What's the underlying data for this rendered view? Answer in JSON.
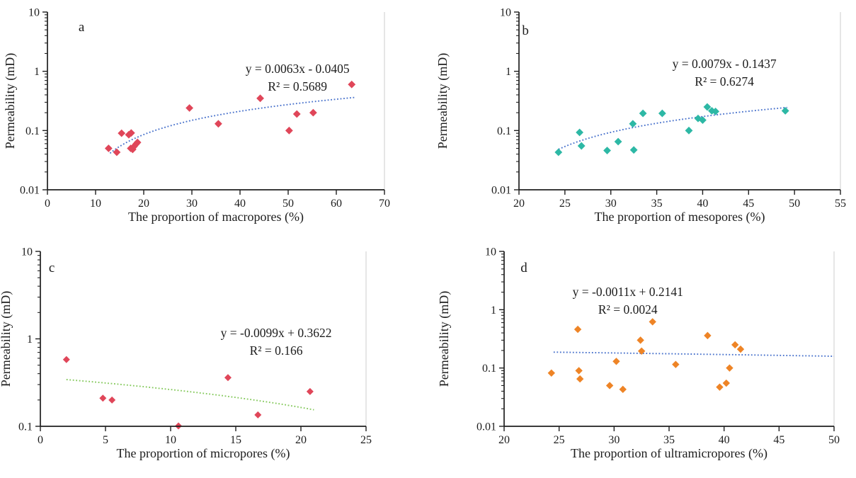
{
  "figure": {
    "background": "#ffffff",
    "axis_color": "#1f1f1f",
    "frame_color": "#cccccc",
    "y_axis_title": "Permeability (mD)"
  },
  "chart_data": [
    {
      "id": "a",
      "type": "scatter",
      "panel_label": "a",
      "x_axis_title": "The proportion of macropores (%)",
      "y_axis_title": "Permeability (mD)",
      "x_range": [
        0,
        70
      ],
      "x_tick_step": 10,
      "x_tick_labels": [
        "0",
        "10",
        "20",
        "30",
        "40",
        "50",
        "60",
        "70"
      ],
      "y_scale": "log",
      "y_range": [
        0.01,
        10
      ],
      "y_tick_labels": [
        "0.01",
        "0.1",
        "1",
        "10"
      ],
      "equation": "y = 0.0063x - 0.0405",
      "r_squared_label": "R² = 0.5689",
      "marker": {
        "shape": "diamond",
        "color": "#e04659",
        "size": 5.4
      },
      "trend_line": {
        "slope": 0.0063,
        "intercept": -0.0405,
        "x_start": 13,
        "x_end": 64,
        "color": "#4a73cc",
        "style": "dotted"
      },
      "points": [
        [
          12.7,
          0.05
        ],
        [
          14.4,
          0.043
        ],
        [
          15.4,
          0.09
        ],
        [
          16.9,
          0.085
        ],
        [
          17.4,
          0.091
        ],
        [
          17.3,
          0.05
        ],
        [
          17.7,
          0.048
        ],
        [
          18.0,
          0.054
        ],
        [
          18.4,
          0.059
        ],
        [
          18.7,
          0.063
        ],
        [
          29.5,
          0.24
        ],
        [
          35.5,
          0.13
        ],
        [
          44.2,
          0.35
        ],
        [
          50.2,
          0.1
        ],
        [
          51.8,
          0.19
        ],
        [
          55.2,
          0.2
        ],
        [
          63.2,
          0.6
        ]
      ],
      "annotation_anchor": {
        "fx": 0.742,
        "fy": 0.319
      },
      "letter_anchor": {
        "fx": 0.101,
        "fy": 0.084
      }
    },
    {
      "id": "b",
      "type": "scatter",
      "panel_label": "b",
      "x_axis_title": "The proportion of mesopores (%)",
      "y_axis_title": "Permeability (mD)",
      "x_range": [
        20,
        55
      ],
      "x_tick_step": 5,
      "x_tick_labels": [
        "20",
        "25",
        "30",
        "35",
        "40",
        "45",
        "50",
        "55"
      ],
      "y_scale": "log",
      "y_range": [
        0.01,
        10
      ],
      "y_tick_labels": [
        "0.01",
        "0.1",
        "1",
        "10"
      ],
      "equation": "y = 0.0079x - 0.1437",
      "r_squared_label": "R² = 0.6274",
      "marker": {
        "shape": "diamond",
        "color": "#2db8a5",
        "size": 5.4
      },
      "trend_line": {
        "slope": 0.0079,
        "intercept": -0.1437,
        "x_start": 24.3,
        "x_end": 49.2,
        "color": "#4a73cc",
        "style": "dotted"
      },
      "points": [
        [
          24.3,
          0.043
        ],
        [
          26.6,
          0.093
        ],
        [
          26.8,
          0.055
        ],
        [
          29.6,
          0.046
        ],
        [
          30.8,
          0.065
        ],
        [
          32.4,
          0.13
        ],
        [
          32.5,
          0.047
        ],
        [
          33.5,
          0.195
        ],
        [
          35.6,
          0.195
        ],
        [
          38.5,
          0.1
        ],
        [
          39.5,
          0.16
        ],
        [
          40.0,
          0.15
        ],
        [
          40.5,
          0.25
        ],
        [
          41.0,
          0.215
        ],
        [
          41.4,
          0.21
        ],
        [
          49.0,
          0.215
        ]
      ],
      "annotation_anchor": {
        "fx": 0.639,
        "fy": 0.291
      },
      "letter_anchor": {
        "fx": 0.02,
        "fy": 0.104
      }
    },
    {
      "id": "c",
      "type": "scatter",
      "panel_label": "c",
      "x_axis_title": "The proportion of micropores (%)",
      "y_axis_title": "Permeability (mD)",
      "x_range": [
        0,
        25
      ],
      "x_tick_step": 5,
      "x_tick_labels": [
        "0",
        "5",
        "10",
        "15",
        "20",
        "25"
      ],
      "y_scale": "log",
      "y_range": [
        0.1,
        10
      ],
      "y_tick_labels": [
        "0.1",
        "1",
        "10"
      ],
      "equation": "y = -0.0099x + 0.3622",
      "r_squared_label": "R² = 0.166",
      "marker": {
        "shape": "diamond",
        "color": "#e04659",
        "size": 5.0
      },
      "trend_line": {
        "slope": -0.0099,
        "intercept": 0.3622,
        "x_start": 2.0,
        "x_end": 21.0,
        "color": "#85c95d",
        "style": "dotted"
      },
      "points": [
        [
          2.0,
          0.58
        ],
        [
          4.8,
          0.21
        ],
        [
          5.5,
          0.2
        ],
        [
          10.6,
          0.101
        ],
        [
          14.4,
          0.36
        ],
        [
          16.7,
          0.135
        ],
        [
          20.7,
          0.25
        ]
      ],
      "annotation_anchor": {
        "fx": 0.724,
        "fy": 0.466
      },
      "letter_anchor": {
        "fx": 0.035,
        "fy": 0.093
      }
    },
    {
      "id": "d",
      "type": "scatter",
      "panel_label": "d",
      "x_axis_title": "The proportion of ultramicropores (%)",
      "y_axis_title": "Permeability (mD)",
      "x_range": [
        20,
        50
      ],
      "x_tick_step": 5,
      "x_tick_labels": [
        "20",
        "25",
        "30",
        "35",
        "40",
        "45",
        "50"
      ],
      "y_scale": "log",
      "y_range": [
        0.01,
        10
      ],
      "y_tick_labels": [
        "0.01",
        "0.1",
        "1",
        "10"
      ],
      "equation": "y = -0.0011x + 0.2141",
      "r_squared_label": "R² = 0.0024",
      "marker": {
        "shape": "diamond",
        "color": "#ee8426",
        "size": 5.2
      },
      "trend_line": {
        "slope": -0.0011,
        "intercept": 0.2141,
        "x_start": 24.5,
        "x_end": 50.0,
        "color": "#4a73cc",
        "style": "dotted"
      },
      "points": [
        [
          24.3,
          0.082
        ],
        [
          26.7,
          0.46
        ],
        [
          26.8,
          0.09
        ],
        [
          26.9,
          0.065
        ],
        [
          29.6,
          0.05
        ],
        [
          30.2,
          0.13
        ],
        [
          30.8,
          0.043
        ],
        [
          32.4,
          0.3
        ],
        [
          32.5,
          0.195
        ],
        [
          33.5,
          0.62
        ],
        [
          35.6,
          0.115
        ],
        [
          38.5,
          0.36
        ],
        [
          39.6,
          0.047
        ],
        [
          40.2,
          0.055
        ],
        [
          40.5,
          0.1
        ],
        [
          41.0,
          0.25
        ],
        [
          41.5,
          0.21
        ]
      ],
      "annotation_anchor": {
        "fx": 0.375,
        "fy": 0.231
      },
      "letter_anchor": {
        "fx": 0.06,
        "fy": 0.093
      }
    }
  ]
}
